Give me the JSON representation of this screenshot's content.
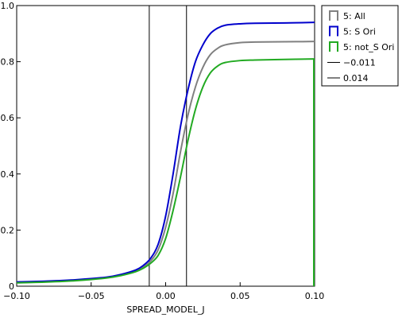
{
  "chart_data": {
    "type": "line",
    "title": "",
    "xlabel": "SPREAD_MODEL_J",
    "ylabel": "",
    "xlim": [
      -0.1,
      0.1
    ],
    "ylim": [
      0,
      1.0
    ],
    "x_ticks": [
      "−0.10",
      "−0.05",
      "0.00",
      "0.05",
      "0.10"
    ],
    "y_ticks": [
      "0",
      "0.2",
      "0.4",
      "0.6",
      "0.8",
      "1.0"
    ],
    "grid": false,
    "legend_position": "outside-right",
    "series": [
      {
        "name": "5: All",
        "color": "#808080",
        "legend_style": "step-icon",
        "x": [
          -0.1,
          -0.08,
          -0.06,
          -0.04,
          -0.03,
          -0.02,
          -0.015,
          -0.01,
          -0.005,
          0.0,
          0.005,
          0.01,
          0.015,
          0.02,
          0.025,
          0.03,
          0.035,
          0.04,
          0.05,
          0.06,
          0.08,
          0.1
        ],
        "y": [
          0.015,
          0.017,
          0.022,
          0.031,
          0.04,
          0.055,
          0.068,
          0.09,
          0.13,
          0.21,
          0.33,
          0.48,
          0.61,
          0.71,
          0.78,
          0.825,
          0.848,
          0.86,
          0.868,
          0.87,
          0.871,
          0.872
        ]
      },
      {
        "name": "5: S Ori",
        "color": "#0000cc",
        "legend_style": "step-icon",
        "x": [
          -0.1,
          -0.08,
          -0.06,
          -0.04,
          -0.03,
          -0.02,
          -0.015,
          -0.01,
          -0.005,
          0.0,
          0.005,
          0.01,
          0.015,
          0.02,
          0.025,
          0.03,
          0.035,
          0.04,
          0.05,
          0.06,
          0.08,
          0.1
        ],
        "y": [
          0.015,
          0.018,
          0.023,
          0.032,
          0.042,
          0.058,
          0.074,
          0.1,
          0.15,
          0.25,
          0.4,
          0.57,
          0.7,
          0.8,
          0.86,
          0.9,
          0.92,
          0.93,
          0.935,
          0.937,
          0.938,
          0.94
        ]
      },
      {
        "name": "5: not_S Ori",
        "color": "#22aa22",
        "legend_style": "step-icon",
        "x": [
          -0.1,
          -0.08,
          -0.06,
          -0.04,
          -0.03,
          -0.02,
          -0.015,
          -0.01,
          -0.005,
          0.0,
          0.005,
          0.01,
          0.015,
          0.02,
          0.025,
          0.03,
          0.035,
          0.04,
          0.05,
          0.06,
          0.08,
          0.1
        ],
        "y": [
          0.012,
          0.015,
          0.02,
          0.029,
          0.038,
          0.052,
          0.064,
          0.082,
          0.11,
          0.17,
          0.27,
          0.39,
          0.52,
          0.63,
          0.71,
          0.76,
          0.785,
          0.797,
          0.804,
          0.806,
          0.808,
          0.81
        ]
      }
    ],
    "vertical_lines": [
      {
        "name": "−0.011",
        "x": -0.011,
        "color": "#000000"
      },
      {
        "name": "0.014",
        "x": 0.014,
        "color": "#000000"
      }
    ]
  }
}
